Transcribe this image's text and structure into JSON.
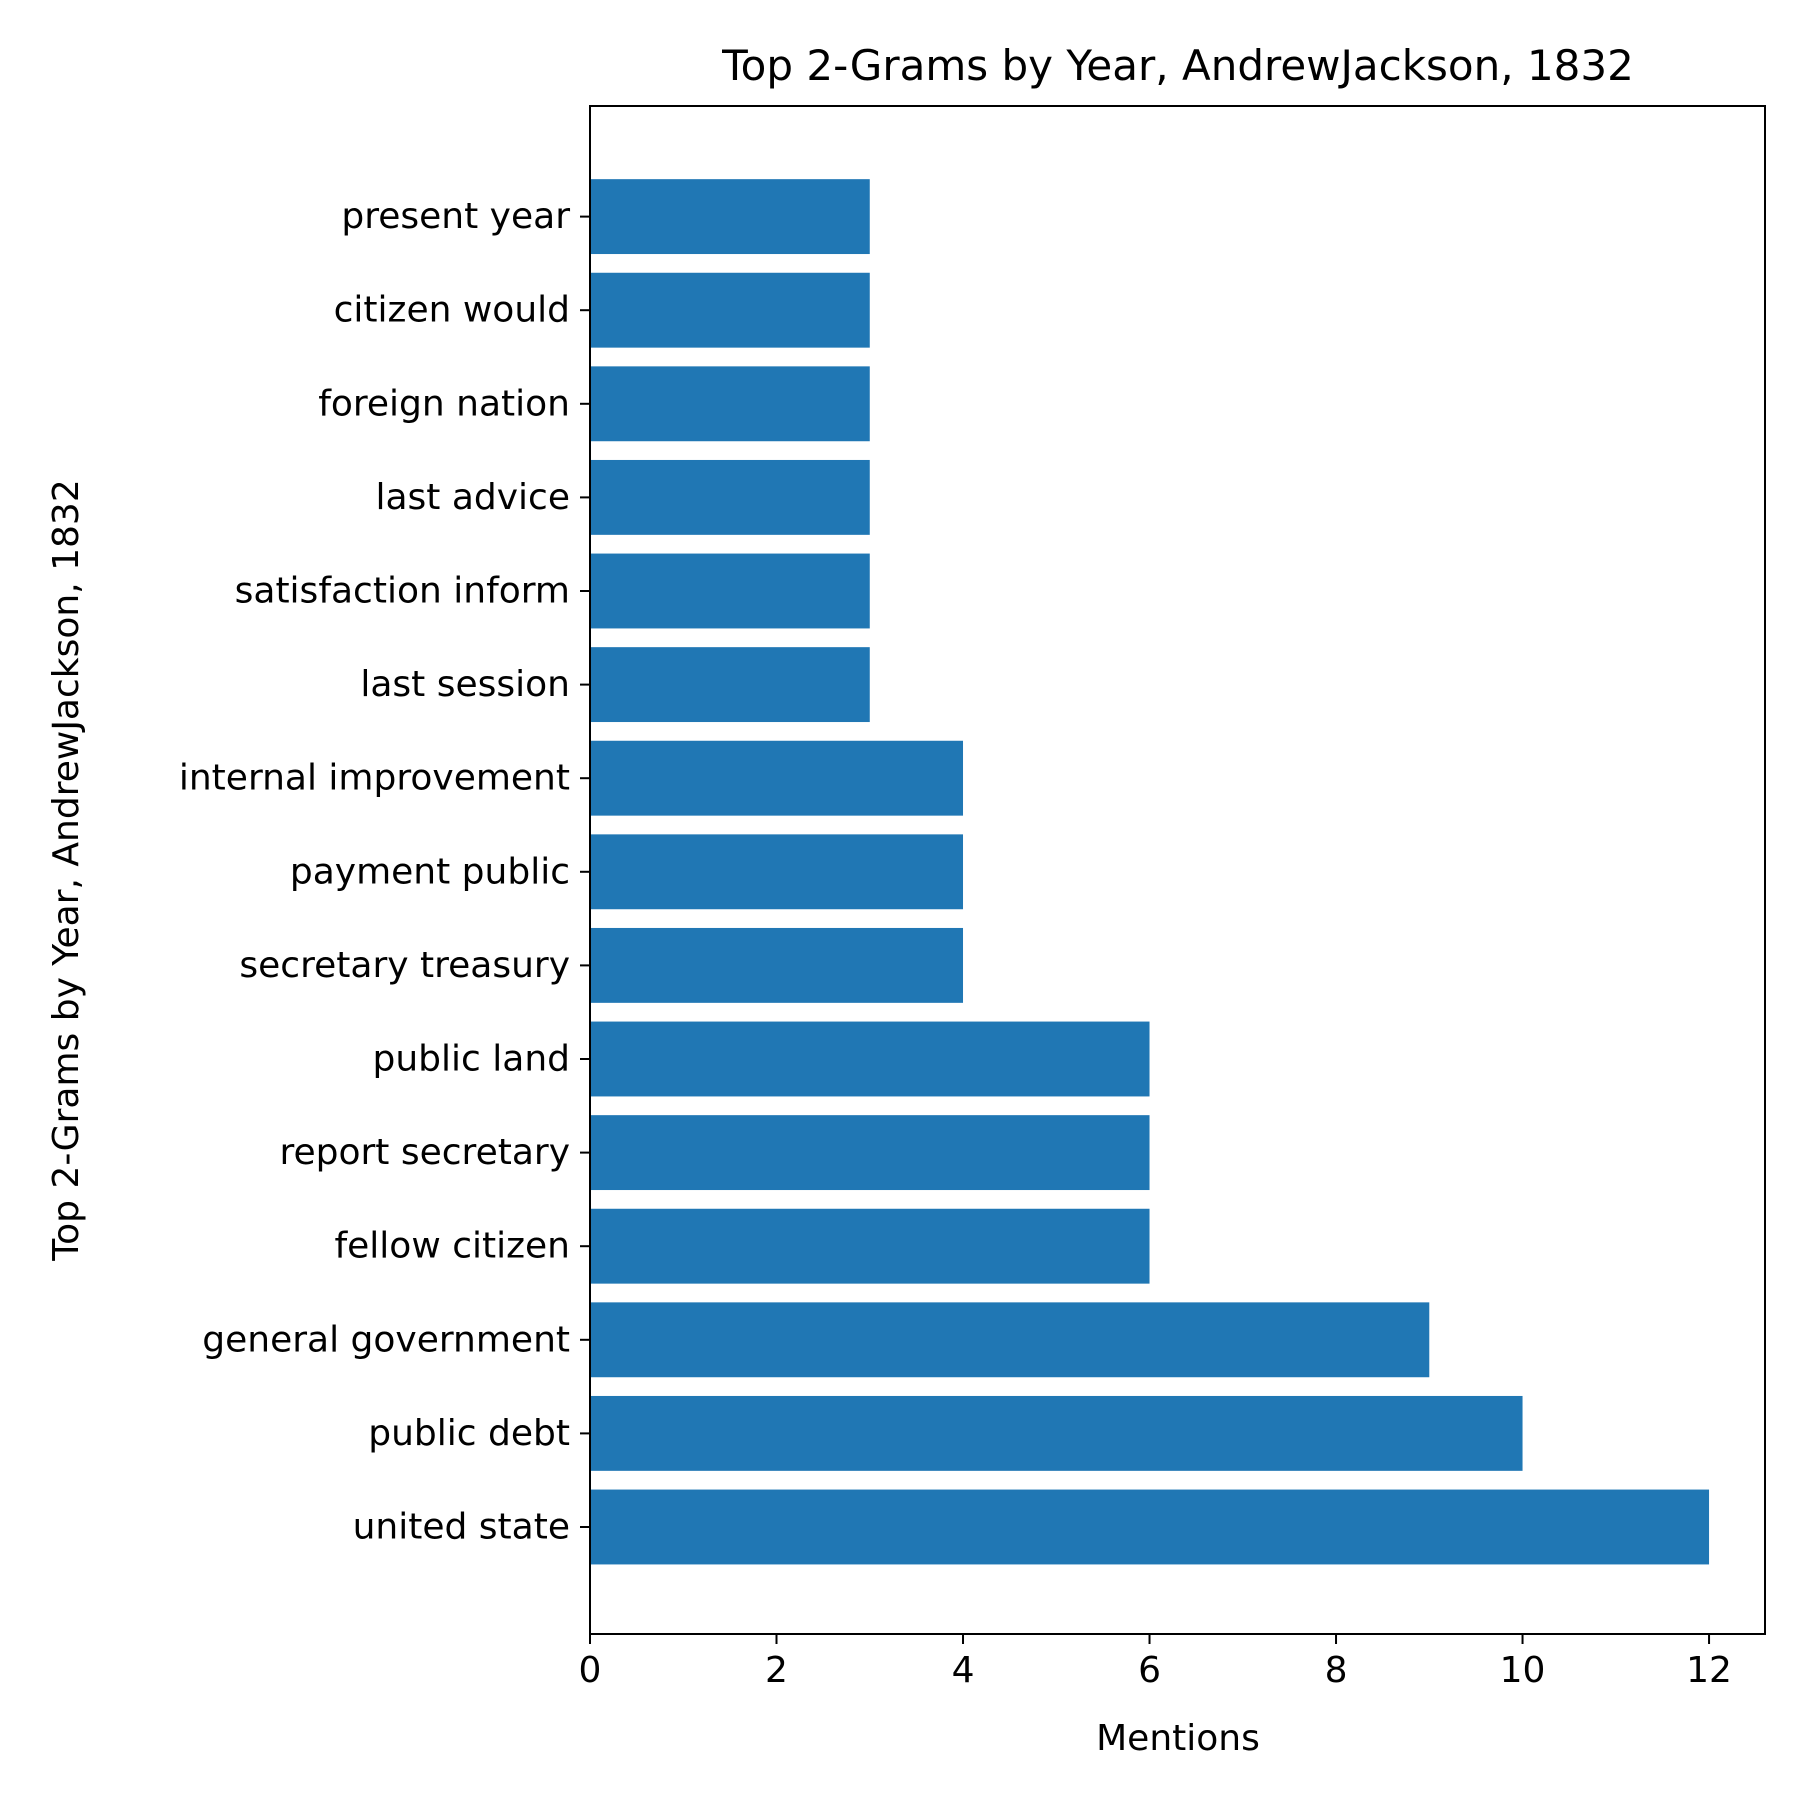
{
  "chart_data": {
    "type": "bar",
    "orientation": "horizontal",
    "title": "Top 2-Grams by Year, AndrewJackson, 1832",
    "xlabel": "Mentions",
    "ylabel": "Top 2-Grams by Year, AndrewJackson, 1832",
    "categories": [
      "united state",
      "public debt",
      "general government",
      "fellow citizen",
      "report secretary",
      "public land",
      "secretary treasury",
      "payment public",
      "internal improvement",
      "last session",
      "satisfaction inform",
      "last advice",
      "foreign nation",
      "citizen would",
      "present year"
    ],
    "values": [
      12,
      10,
      9,
      6,
      6,
      6,
      4,
      4,
      4,
      3,
      3,
      3,
      3,
      3,
      3
    ],
    "xlim": [
      0,
      12.6
    ],
    "xticks": [
      0,
      2,
      4,
      6,
      8,
      10,
      12
    ],
    "grid": false,
    "bar_color": "#2077b4"
  }
}
